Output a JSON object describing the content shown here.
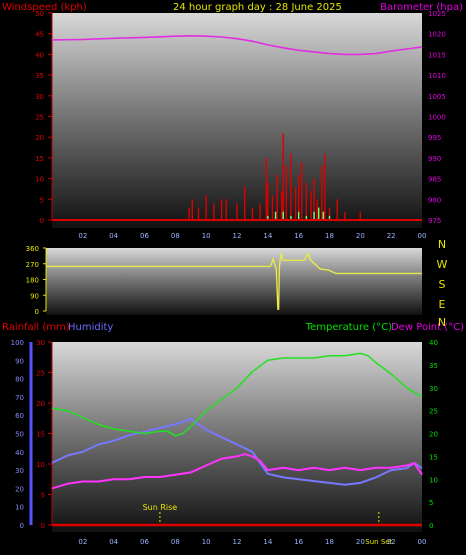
{
  "chart_data": [
    {
      "type": "line",
      "title": "24 hour graph day : 28 June 2025",
      "left_axis_label": "Windspeed (kph)",
      "right_axis_label": "Barometer (hpa)",
      "x_ticks": [
        "02",
        "04",
        "06",
        "08",
        "10",
        "12",
        "14",
        "16",
        "18",
        "20",
        "22",
        "00"
      ],
      "ylim_left": [
        0,
        50
      ],
      "y_ticks_left": [
        "0",
        "5",
        "10",
        "15",
        "20",
        "25",
        "30",
        "35",
        "40",
        "45",
        "50"
      ],
      "ylim_right": [
        975,
        1025
      ],
      "y_ticks_right": [
        "975",
        "980",
        "985",
        "990",
        "995",
        "1000",
        "1005",
        "1010",
        "1015",
        "1020",
        "1025"
      ],
      "barometer": {
        "x": [
          0,
          2,
          4,
          6,
          8,
          9,
          10,
          11,
          12,
          13,
          14,
          15,
          16,
          17,
          18,
          19,
          20,
          21,
          22,
          23,
          24
        ],
        "y": [
          1018.5,
          1018.6,
          1018.9,
          1019.1,
          1019.4,
          1019.5,
          1019.4,
          1019.2,
          1018.8,
          1018.2,
          1017.3,
          1016.6,
          1016.0,
          1015.6,
          1015.2,
          1015.0,
          1015.0,
          1015.2,
          1015.8,
          1016.3,
          1016.8
        ]
      },
      "wind_gust": {
        "x": [
          8.9,
          9.1,
          9.5,
          10.0,
          10.5,
          11.0,
          11.3,
          12.0,
          12.5,
          13.0,
          13.5,
          13.9,
          14.0,
          14.3,
          14.6,
          14.9,
          15.0,
          15.2,
          15.5,
          15.8,
          16.0,
          16.2,
          16.5,
          16.8,
          17.0,
          17.2,
          17.5,
          17.7,
          18.0,
          18.5,
          19.0,
          20.0
        ],
        "y": [
          3,
          5,
          3,
          6,
          4,
          5,
          5,
          4,
          8,
          3,
          4,
          15,
          9,
          6,
          11,
          7,
          21,
          13,
          16,
          8,
          11,
          14,
          9,
          7,
          10,
          5,
          13,
          16,
          3,
          5,
          2,
          2
        ]
      },
      "wind_average": {
        "x": [
          14.0,
          14.5,
          15.0,
          15.5,
          16.0,
          16.5,
          17.0,
          17.3,
          17.6,
          18.0
        ],
        "y": [
          1,
          2,
          2,
          1,
          2,
          1,
          2,
          3,
          2,
          1
        ]
      }
    },
    {
      "type": "line",
      "left_axis_label": "Wind direction (deg)",
      "compass_labels": [
        "N",
        "W",
        "S",
        "E",
        "N"
      ],
      "ylim": [
        0,
        360
      ],
      "y_ticks": [
        "0",
        "90",
        "180",
        "270",
        "360"
      ],
      "direction": {
        "x": [
          0,
          14.3,
          14.4,
          14.5,
          14.6,
          14.7,
          14.8,
          14.85,
          14.9,
          15.0,
          15.1,
          16.0,
          16.5,
          16.7,
          16.9,
          17.5,
          18.0,
          18.5,
          19.0,
          24.0
        ],
        "y": [
          255,
          255,
          270,
          300,
          270,
          240,
          10,
          10,
          255,
          330,
          290,
          290,
          290,
          330,
          290,
          240,
          235,
          215,
          215,
          215
        ]
      }
    },
    {
      "type": "line",
      "label_rainfall": "Rainfall (mm)",
      "label_humidity": "Humidity",
      "label_temperature": "Temperature (°C)",
      "label_dewpoint": "Dew Point (°C)",
      "ylim_humidity": [
        0,
        100
      ],
      "y_ticks_humidity": [
        "0",
        "10",
        "20",
        "30",
        "40",
        "50",
        "60",
        "70",
        "80",
        "90",
        "100"
      ],
      "ylim_rainfall": [
        0,
        30
      ],
      "y_ticks_rainfall": [
        "0",
        "5",
        "10",
        "15",
        "20",
        "25",
        "30"
      ],
      "ylim_temperature": [
        0,
        40
      ],
      "y_ticks_temperature": [
        "0",
        "5",
        "10",
        "15",
        "20",
        "25",
        "30",
        "35",
        "40"
      ],
      "sunrise_label": "Sun Rise",
      "sunset_label": "Sun Set",
      "sunrise_hour": 7.0,
      "sunset_hour": 21.2,
      "temperature": {
        "x": [
          0,
          1,
          2,
          3,
          4,
          5,
          6,
          7,
          7.5,
          8,
          8.5,
          9,
          10,
          11,
          12,
          13,
          14,
          15,
          16,
          17,
          18,
          19,
          20,
          20.5,
          21,
          22,
          23,
          24
        ],
        "y": [
          25.5,
          25,
          23.5,
          22,
          21,
          20.5,
          20,
          20.5,
          20.5,
          19.5,
          20,
          21.5,
          25,
          27.5,
          30,
          33.5,
          36,
          36.5,
          36.5,
          36.5,
          37,
          37,
          37.5,
          37,
          35.5,
          33,
          30,
          28
        ]
      },
      "humidity": {
        "x": [
          0,
          1,
          2,
          3,
          4,
          5,
          6,
          7,
          8,
          9,
          10,
          11,
          12,
          12.5,
          13,
          13.5,
          14,
          15,
          16,
          17,
          18,
          19,
          20,
          21,
          22,
          23,
          23.5,
          24
        ],
        "y": [
          34,
          38,
          40,
          44,
          46,
          49,
          51,
          53,
          55,
          58,
          52,
          48,
          44,
          42,
          40,
          34,
          28,
          26,
          25,
          24,
          23,
          22,
          23,
          26,
          30,
          31,
          34,
          31
        ]
      },
      "dew_point": {
        "x": [
          0,
          1,
          2,
          3,
          4,
          5,
          6,
          7,
          8,
          9,
          10,
          11,
          12,
          12.5,
          13,
          13.5,
          14,
          15,
          16,
          17,
          18,
          19,
          20,
          21,
          22,
          23,
          23.5,
          24
        ],
        "y": [
          8,
          9,
          9.5,
          9.5,
          10,
          10,
          10.5,
          10.5,
          11,
          11.5,
          13,
          14.5,
          15,
          15.5,
          15,
          14,
          12,
          12.5,
          12,
          12.5,
          12,
          12.5,
          12,
          12.5,
          12.5,
          13,
          13.5,
          11
        ]
      },
      "rainfall": {
        "x": [
          0,
          24
        ],
        "y": [
          0,
          0
        ]
      }
    }
  ]
}
